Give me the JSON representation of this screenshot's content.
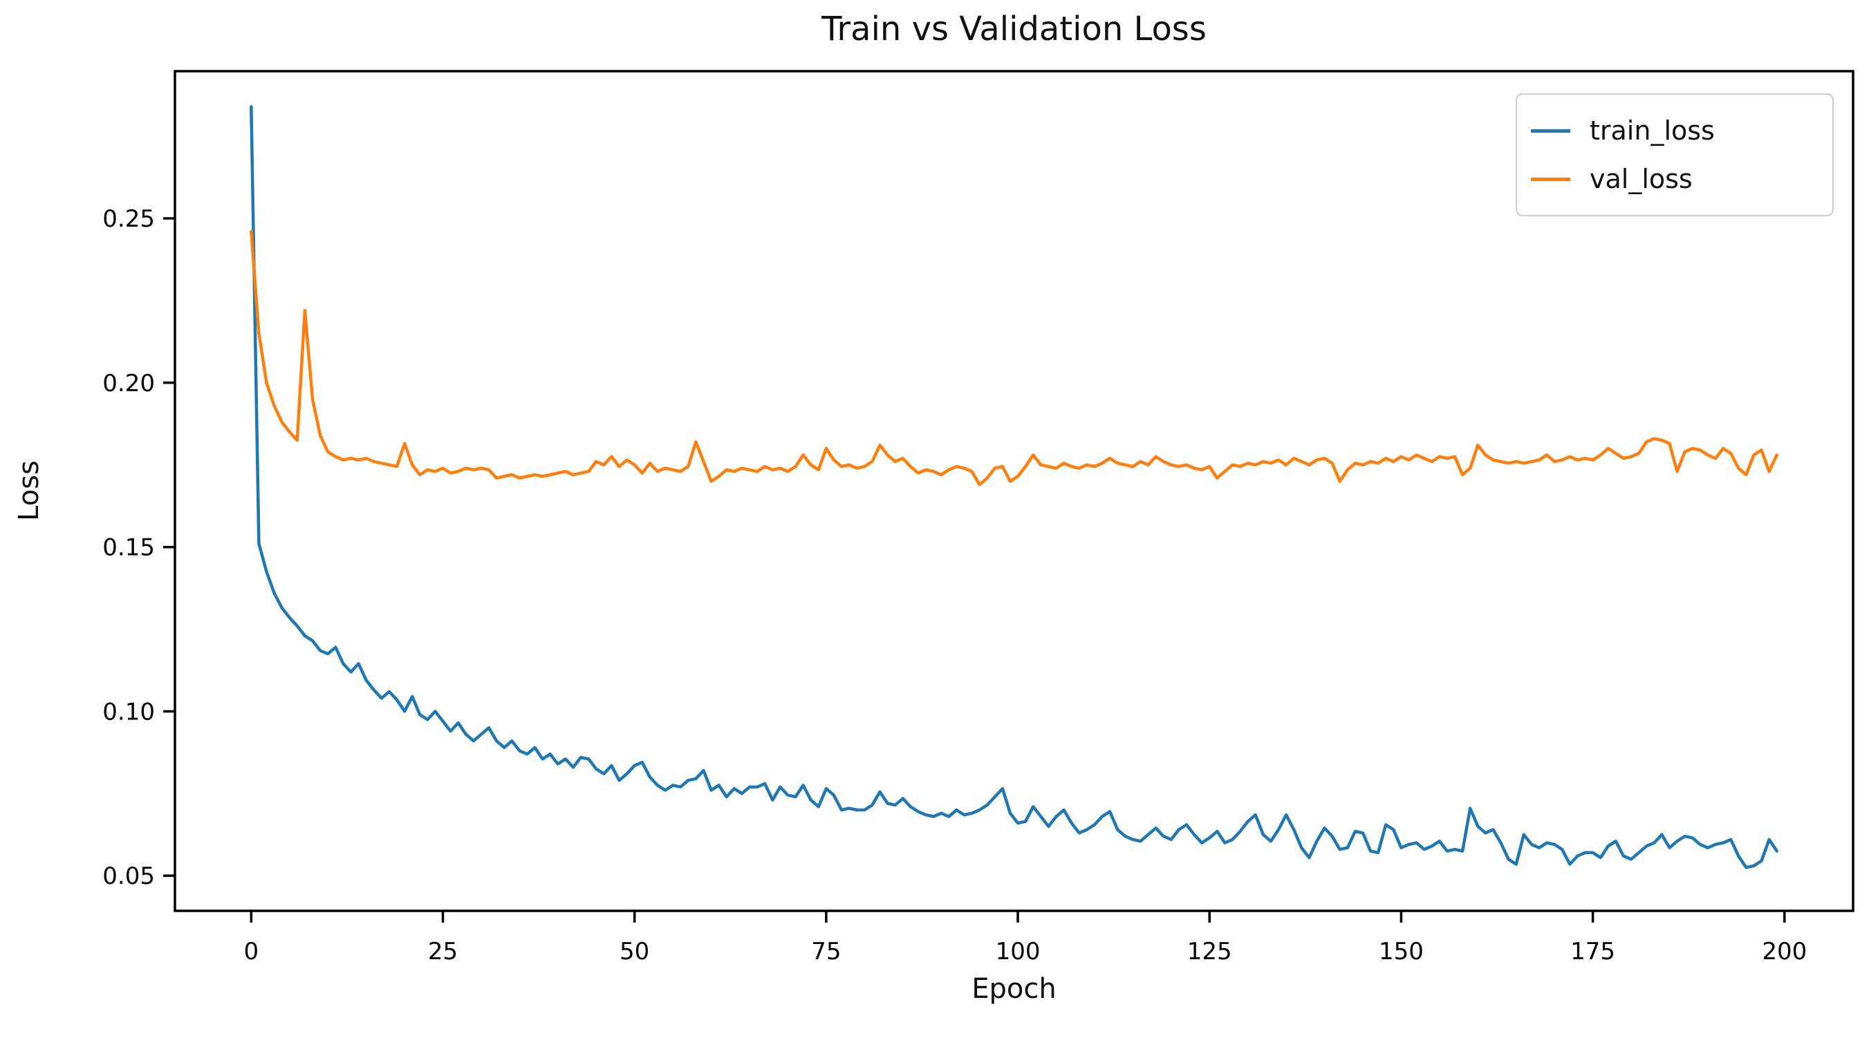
{
  "figure": {
    "title": "Train vs Validation Loss",
    "x_axis_label": "Epoch",
    "y_axis_label": "Loss"
  },
  "legend": {
    "position": "upper right",
    "entries": [
      {
        "label": "train_loss",
        "color": "#1f77b4"
      },
      {
        "label": "val_loss",
        "color": "#ff7f0e"
      }
    ]
  },
  "chart_data": {
    "type": "line",
    "title": "Train vs Validation Loss",
    "xlabel": "Epoch",
    "ylabel": "Loss",
    "grid": false,
    "legend_position": "upper right",
    "xlim": [
      -9.95,
      208.95
    ],
    "ylim": [
      0.0393,
      0.2948
    ],
    "x_ticks": [
      0,
      25,
      50,
      75,
      100,
      125,
      150,
      175,
      200
    ],
    "x_tick_labels": [
      "0",
      "25",
      "50",
      "75",
      "100",
      "125",
      "150",
      "175",
      "200"
    ],
    "y_ticks": [
      0.05,
      0.1,
      0.15,
      0.2,
      0.25
    ],
    "y_tick_labels": [
      "0.05",
      "0.10",
      "0.15",
      "0.20",
      "0.25"
    ],
    "x": [
      0,
      1,
      2,
      3,
      4,
      5,
      6,
      7,
      8,
      9,
      10,
      11,
      12,
      13,
      14,
      15,
      16,
      17,
      18,
      19,
      20,
      21,
      22,
      23,
      24,
      25,
      26,
      27,
      28,
      29,
      30,
      31,
      32,
      33,
      34,
      35,
      36,
      37,
      38,
      39,
      40,
      41,
      42,
      43,
      44,
      45,
      46,
      47,
      48,
      49,
      50,
      51,
      52,
      53,
      54,
      55,
      56,
      57,
      58,
      59,
      60,
      61,
      62,
      63,
      64,
      65,
      66,
      67,
      68,
      69,
      70,
      71,
      72,
      73,
      74,
      75,
      76,
      77,
      78,
      79,
      80,
      81,
      82,
      83,
      84,
      85,
      86,
      87,
      88,
      89,
      90,
      91,
      92,
      93,
      94,
      95,
      96,
      97,
      98,
      99,
      100,
      101,
      102,
      103,
      104,
      105,
      106,
      107,
      108,
      109,
      110,
      111,
      112,
      113,
      114,
      115,
      116,
      117,
      118,
      119,
      120,
      121,
      122,
      123,
      124,
      125,
      126,
      127,
      128,
      129,
      130,
      131,
      132,
      133,
      134,
      135,
      136,
      137,
      138,
      139,
      140,
      141,
      142,
      143,
      144,
      145,
      146,
      147,
      148,
      149,
      150,
      151,
      152,
      153,
      154,
      155,
      156,
      157,
      158,
      159,
      160,
      161,
      162,
      163,
      164,
      165,
      166,
      167,
      168,
      169,
      170,
      171,
      172,
      173,
      174,
      175,
      176,
      177,
      178,
      179,
      180,
      181,
      182,
      183,
      184,
      185,
      186,
      187,
      188,
      189,
      190,
      191,
      192,
      193,
      194,
      195,
      196,
      197,
      198,
      199
    ],
    "series": [
      {
        "name": "train_loss",
        "color": "#1f77b4",
        "values": [
          0.284,
          0.151,
          0.1425,
          0.136,
          0.1315,
          0.1285,
          0.126,
          0.123,
          0.1215,
          0.1185,
          0.1175,
          0.1195,
          0.1145,
          0.112,
          0.1145,
          0.1095,
          0.1065,
          0.104,
          0.106,
          0.1035,
          0.1,
          0.1045,
          0.099,
          0.0975,
          0.1,
          0.097,
          0.094,
          0.0965,
          0.093,
          0.091,
          0.093,
          0.095,
          0.091,
          0.089,
          0.091,
          0.088,
          0.087,
          0.089,
          0.0855,
          0.087,
          0.084,
          0.0855,
          0.083,
          0.086,
          0.0855,
          0.0825,
          0.081,
          0.0835,
          0.079,
          0.081,
          0.0835,
          0.0845,
          0.08,
          0.0775,
          0.076,
          0.0775,
          0.077,
          0.079,
          0.0795,
          0.082,
          0.076,
          0.0775,
          0.074,
          0.0765,
          0.075,
          0.077,
          0.077,
          0.078,
          0.073,
          0.077,
          0.0745,
          0.074,
          0.0775,
          0.073,
          0.071,
          0.0765,
          0.0745,
          0.07,
          0.0705,
          0.07,
          0.07,
          0.0715,
          0.0755,
          0.072,
          0.0715,
          0.0735,
          0.071,
          0.0695,
          0.0685,
          0.068,
          0.069,
          0.068,
          0.07,
          0.0685,
          0.069,
          0.07,
          0.0715,
          0.074,
          0.0765,
          0.069,
          0.066,
          0.0665,
          0.071,
          0.068,
          0.065,
          0.068,
          0.07,
          0.066,
          0.063,
          0.064,
          0.0655,
          0.068,
          0.0695,
          0.064,
          0.062,
          0.061,
          0.0605,
          0.0625,
          0.0645,
          0.062,
          0.061,
          0.064,
          0.0655,
          0.0625,
          0.06,
          0.0615,
          0.0635,
          0.06,
          0.061,
          0.0635,
          0.0665,
          0.0685,
          0.0625,
          0.0605,
          0.064,
          0.0685,
          0.064,
          0.0585,
          0.0555,
          0.0605,
          0.0645,
          0.062,
          0.058,
          0.0585,
          0.0635,
          0.063,
          0.0575,
          0.057,
          0.0655,
          0.064,
          0.0585,
          0.0595,
          0.06,
          0.058,
          0.059,
          0.0605,
          0.0575,
          0.058,
          0.0575,
          0.0705,
          0.065,
          0.063,
          0.064,
          0.06,
          0.055,
          0.0535,
          0.0625,
          0.0595,
          0.0585,
          0.06,
          0.0595,
          0.058,
          0.0535,
          0.056,
          0.057,
          0.057,
          0.0555,
          0.059,
          0.0605,
          0.056,
          0.055,
          0.057,
          0.059,
          0.06,
          0.0625,
          0.0585,
          0.0605,
          0.062,
          0.0615,
          0.0595,
          0.0585,
          0.0595,
          0.06,
          0.061,
          0.056,
          0.0525,
          0.053,
          0.0545,
          0.061,
          0.0575
        ]
      },
      {
        "name": "val_loss",
        "color": "#ff7f0e",
        "values": [
          0.246,
          0.215,
          0.2,
          0.193,
          0.188,
          0.185,
          0.1825,
          0.222,
          0.195,
          0.184,
          0.179,
          0.1775,
          0.1765,
          0.177,
          0.1765,
          0.177,
          0.176,
          0.1755,
          0.175,
          0.1745,
          0.1815,
          0.175,
          0.172,
          0.1735,
          0.173,
          0.174,
          0.1725,
          0.173,
          0.174,
          0.1735,
          0.174,
          0.1735,
          0.171,
          0.1715,
          0.172,
          0.171,
          0.1715,
          0.172,
          0.1715,
          0.172,
          0.1725,
          0.173,
          0.172,
          0.1725,
          0.173,
          0.176,
          0.175,
          0.1775,
          0.1745,
          0.1765,
          0.175,
          0.1725,
          0.1755,
          0.173,
          0.174,
          0.1735,
          0.173,
          0.1745,
          0.182,
          0.176,
          0.17,
          0.1715,
          0.1735,
          0.173,
          0.174,
          0.1735,
          0.173,
          0.1745,
          0.1735,
          0.174,
          0.173,
          0.1745,
          0.178,
          0.175,
          0.1735,
          0.18,
          0.1765,
          0.1745,
          0.175,
          0.174,
          0.1745,
          0.176,
          0.181,
          0.178,
          0.176,
          0.177,
          0.1745,
          0.1725,
          0.1735,
          0.173,
          0.172,
          0.1735,
          0.1745,
          0.174,
          0.173,
          0.169,
          0.171,
          0.174,
          0.1745,
          0.17,
          0.1715,
          0.1745,
          0.178,
          0.175,
          0.1745,
          0.174,
          0.1755,
          0.1745,
          0.174,
          0.175,
          0.1745,
          0.1755,
          0.177,
          0.1755,
          0.175,
          0.1745,
          0.176,
          0.175,
          0.1775,
          0.176,
          0.175,
          0.1745,
          0.175,
          0.174,
          0.1735,
          0.1745,
          0.171,
          0.173,
          0.175,
          0.1745,
          0.1755,
          0.175,
          0.176,
          0.1755,
          0.1765,
          0.175,
          0.177,
          0.176,
          0.175,
          0.1765,
          0.177,
          0.1755,
          0.17,
          0.1735,
          0.1755,
          0.175,
          0.176,
          0.1755,
          0.177,
          0.176,
          0.1775,
          0.1765,
          0.178,
          0.177,
          0.176,
          0.1775,
          0.177,
          0.1775,
          0.172,
          0.174,
          0.181,
          0.178,
          0.1765,
          0.176,
          0.1755,
          0.176,
          0.1755,
          0.176,
          0.1765,
          0.178,
          0.176,
          0.1765,
          0.1775,
          0.1765,
          0.177,
          0.1765,
          0.178,
          0.18,
          0.1785,
          0.177,
          0.1775,
          0.1785,
          0.182,
          0.183,
          0.1825,
          0.1815,
          0.173,
          0.179,
          0.18,
          0.1795,
          0.178,
          0.177,
          0.18,
          0.1785,
          0.174,
          0.172,
          0.178,
          0.1795,
          0.173,
          0.178
        ]
      }
    ]
  }
}
